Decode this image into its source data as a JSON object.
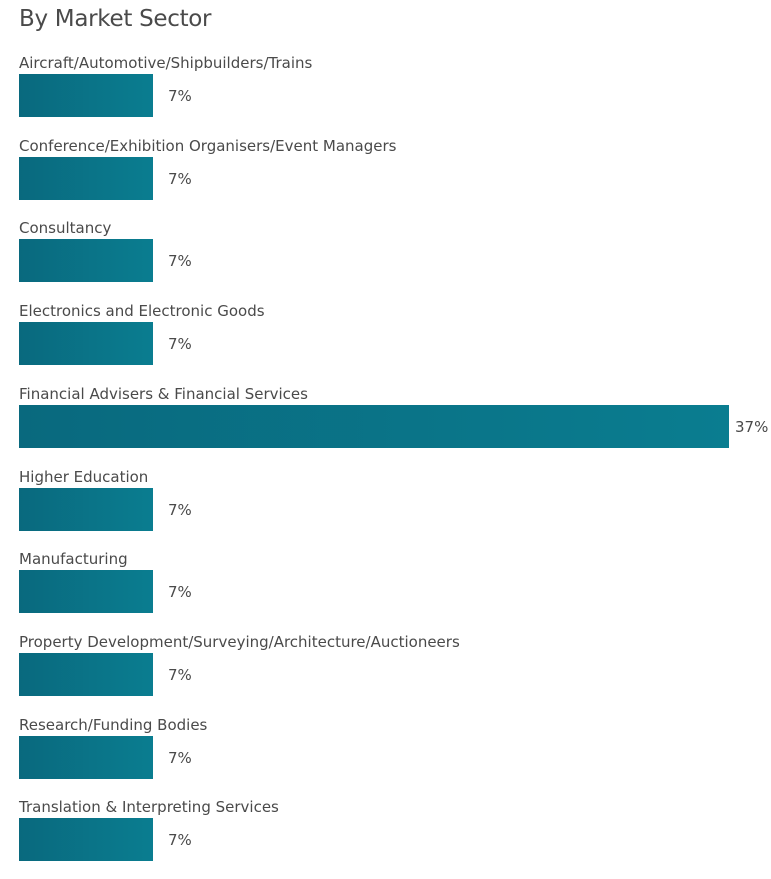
{
  "chart_data": {
    "type": "bar",
    "orientation": "horizontal",
    "title": "By Market Sector",
    "xlabel": "",
    "ylabel": "",
    "unit": "%",
    "xlim": [
      0,
      37
    ],
    "grid": false,
    "legend": "none",
    "categories": [
      "Aircraft/Automotive/Shipbuilders/Trains",
      "Conference/Exhibition Organisers/Event Managers",
      "Consultancy",
      "Electronics and Electronic Goods",
      "Financial Advisers & Financial Services",
      "Higher Education",
      "Manufacturing",
      "Property Development/Surveying/Architecture/Auctioneers",
      "Research/Funding Bodies",
      "Translation & Interpreting Services"
    ],
    "values": [
      7,
      7,
      7,
      7,
      37,
      7,
      7,
      7,
      7,
      7
    ],
    "value_labels": [
      "7%",
      "7%",
      "7%",
      "7%",
      "37%",
      "7%",
      "7%",
      "7%",
      "7%",
      "7%"
    ],
    "colors": {
      "bar_start": "#09697e",
      "bar_end": "#0a7d90",
      "text": "#4a4a4a"
    }
  }
}
